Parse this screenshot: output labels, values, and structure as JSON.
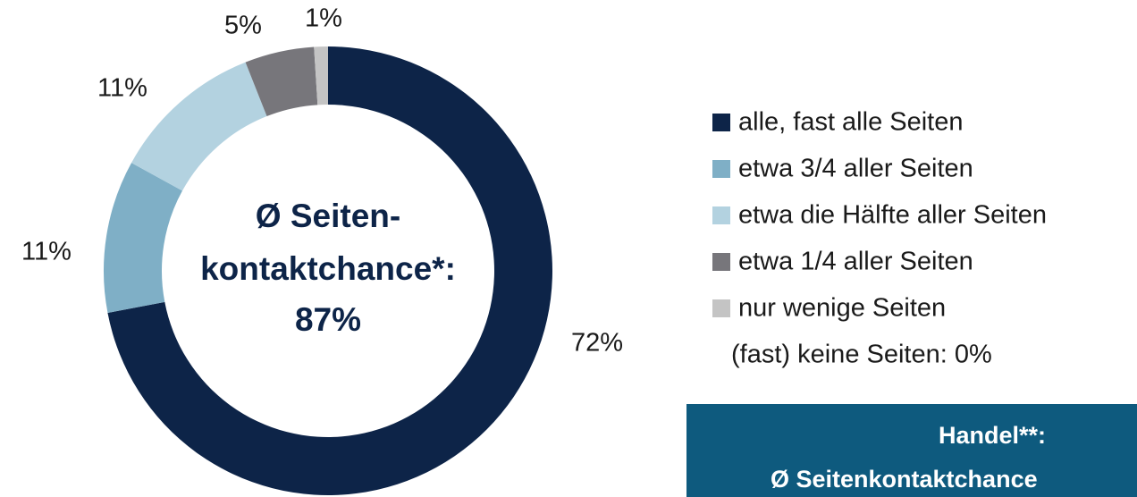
{
  "chart_data": {
    "type": "donut",
    "categories": [
      "alle, fast alle Seiten",
      "etwa 3/4 aller Seiten",
      "etwa die Hälfte aller Seiten",
      "etwa 1/4 aller Seiten",
      "nur wenige Seiten"
    ],
    "values": [
      72,
      11,
      11,
      5,
      1
    ],
    "value_labels": [
      "72%",
      "11%",
      "11%",
      "5%",
      "1%"
    ],
    "colors": [
      "#0d2448",
      "#7fafc6",
      "#b3d2e0",
      "#77767b",
      "#c4c4c4"
    ],
    "center_text": [
      "Ø Seiten-",
      "kontaktchance*:",
      "87%"
    ],
    "legend_note": "(fast) keine Seiten: 0%",
    "box_text": [
      "Handel**:",
      "Ø Seitenkontaktchance"
    ]
  }
}
